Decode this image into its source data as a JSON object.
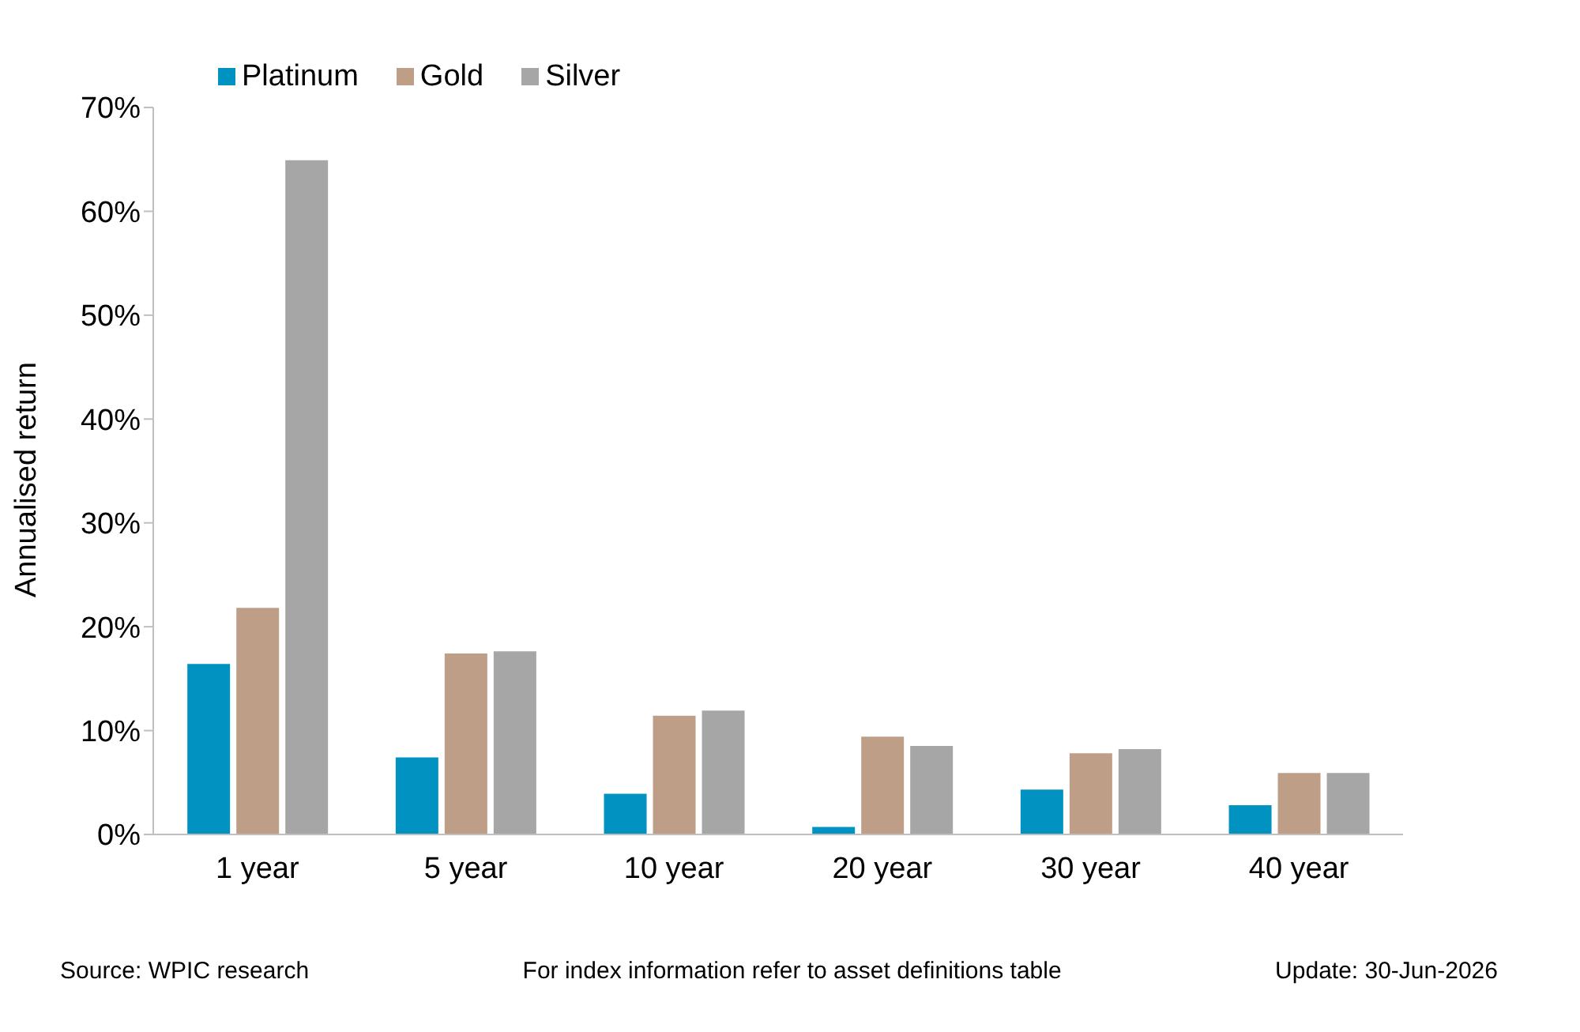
{
  "chart_data": {
    "type": "bar",
    "ylabel": "Annualised return",
    "categories": [
      "1 year",
      "5 year",
      "10 year",
      "20 year",
      "30 year",
      "40 year"
    ],
    "series": [
      {
        "name": "Platinum",
        "color": "#0092c0",
        "values": [
          16.5,
          7.5,
          4.0,
          0.8,
          4.4,
          2.9
        ]
      },
      {
        "name": "Gold",
        "color": "#bf9e88",
        "values": [
          21.9,
          17.5,
          11.5,
          9.5,
          7.9,
          6.0
        ]
      },
      {
        "name": "Silver",
        "color": "#a6a6a6",
        "values": [
          65.0,
          17.7,
          12.0,
          8.6,
          8.3,
          6.0
        ]
      }
    ],
    "ylim": [
      0,
      70
    ],
    "yticks": [
      {
        "value": 0,
        "label": "0%"
      },
      {
        "value": 10,
        "label": "10%"
      },
      {
        "value": 20,
        "label": "20%"
      },
      {
        "value": 30,
        "label": "30%"
      },
      {
        "value": 40,
        "label": "40%"
      },
      {
        "value": 50,
        "label": "50%"
      },
      {
        "value": 60,
        "label": "60%"
      },
      {
        "value": 70,
        "label": "70%"
      }
    ],
    "grid": false,
    "legend": "top left",
    "annotations": [
      "Source: WPIC research",
      "For index information refer to asset definitions table",
      "Update: 30-Jun-2026"
    ]
  }
}
